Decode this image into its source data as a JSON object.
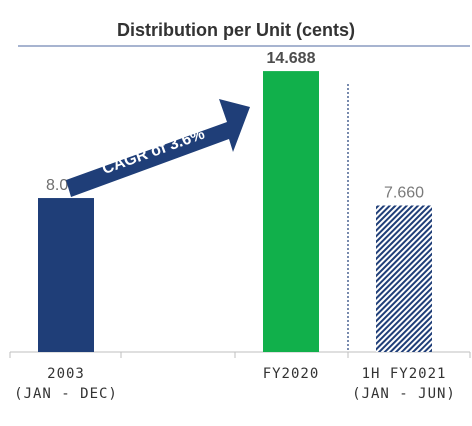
{
  "chart_data": {
    "type": "bar",
    "title": "Distribution per Unit (cents)",
    "categories": [
      {
        "line1": "2003",
        "line2": "(JAN - DEC)"
      },
      {
        "line1": "FY2020",
        "line2": ""
      },
      {
        "line1": "1H FY2021",
        "line2": "(JAN - JUN)"
      }
    ],
    "values": [
      8.05,
      14.688,
      7.66
    ],
    "value_labels": [
      "8.050",
      "14.688",
      "7.660"
    ],
    "ylim": [
      0,
      16
    ],
    "grid": false,
    "legend": "none",
    "annotation": "CAGR of 3.6%",
    "colors": {
      "bar_2003": "#1f3e78",
      "bar_fy2020": "#11b04b",
      "bar_1h_pattern": "#1f3e78",
      "arrow": "#1f3e78",
      "title_rule": "#8a9bc0",
      "axis": "#bfbfbf",
      "divider": "#1f3e78"
    }
  }
}
